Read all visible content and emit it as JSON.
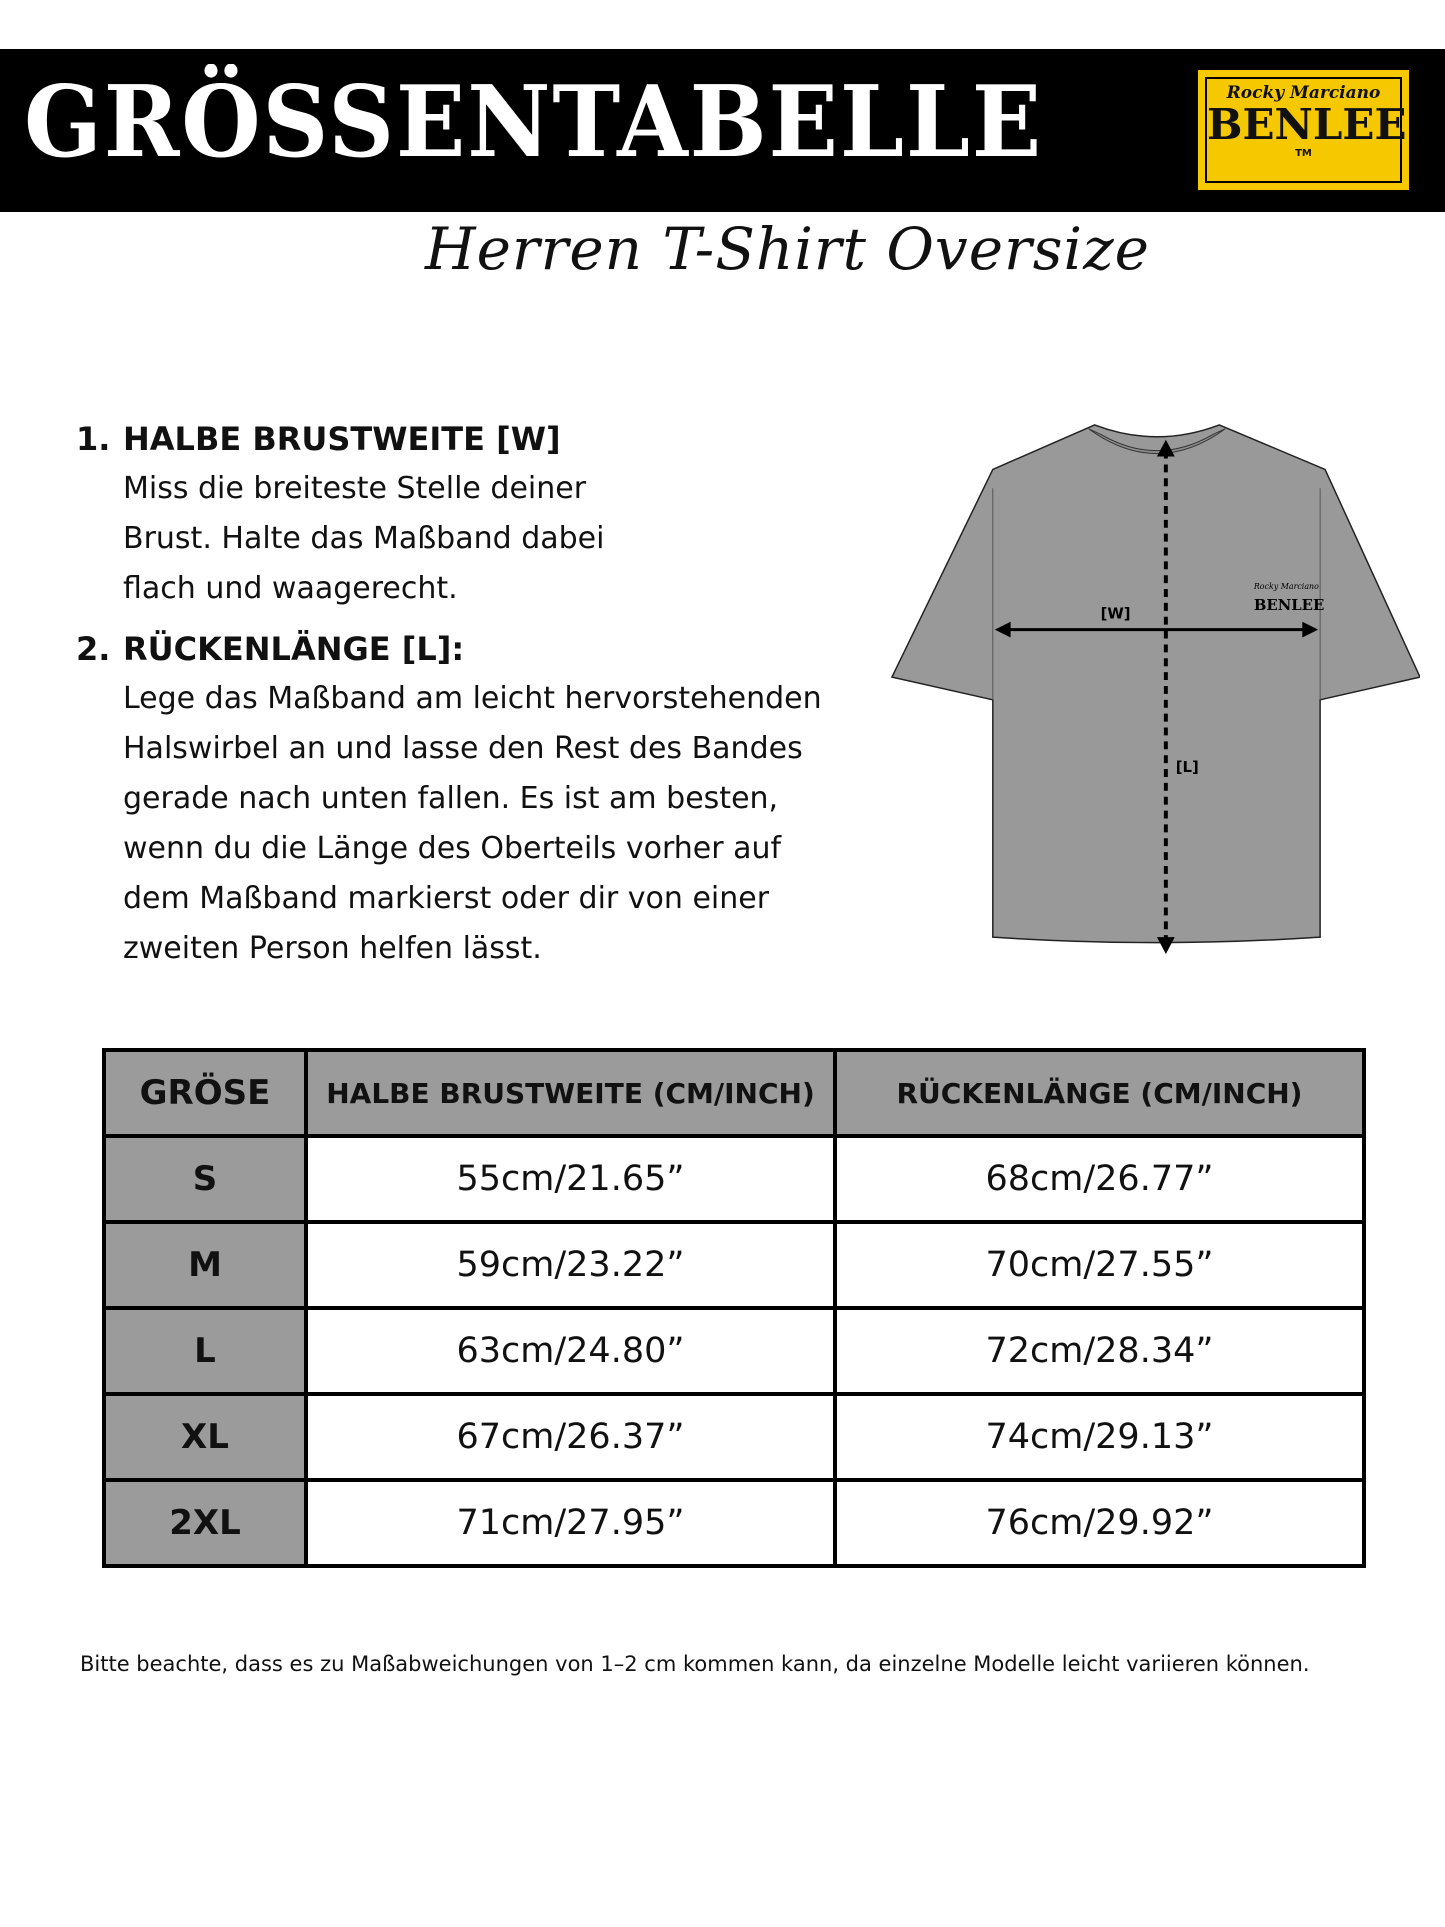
{
  "header": {
    "title": "GRÖSSENTABELLE",
    "subtitle": "Herren T-Shirt Oversize",
    "logo": {
      "script": "Rocky Marciano",
      "brand": "BENLEE",
      "tm": "TM",
      "color": "#f6c800"
    }
  },
  "instructions": [
    {
      "number": "1.",
      "heading": "HALBE BRUSTWEITE [W]",
      "lines": [
        "Miss die breiteste Stelle deiner",
        "Brust. Halte das Maßband dabei",
        "flach und waagerecht."
      ]
    },
    {
      "number": "2.",
      "heading": "RÜCKENLÄNGE [L]:",
      "lines": [
        "Lege das Maßband am leicht hervorstehenden",
        "Halswirbel an und lasse den Rest des Bandes",
        "gerade nach unten fallen. Es ist am besten,",
        "wenn du die Länge des Oberteils vorher auf",
        "dem Maßband markierst oder dir von einer",
        "zweiten Person helfen lässt."
      ]
    }
  ],
  "diagram": {
    "w_label": "[W]",
    "l_label": "[L]",
    "shirt_logo": "BENLEE",
    "shirt_logo_script": "Rocky Marciano",
    "shirt_color": "#999999"
  },
  "table": {
    "headers": [
      "GRÖSE",
      "HALBE BRUSTWEITE (CM/INCH)",
      "RÜCKENLÄNGE (CM/INCH)"
    ],
    "rows": [
      [
        "S",
        "55cm/21.65”",
        "68cm/26.77”"
      ],
      [
        "M",
        "59cm/23.22”",
        "70cm/27.55”"
      ],
      [
        "L",
        "63cm/24.80”",
        "72cm/28.34”"
      ],
      [
        "XL",
        "67cm/26.37”",
        "74cm/29.13”"
      ],
      [
        "2XL",
        "71cm/27.95”",
        "76cm/29.92”"
      ]
    ]
  },
  "footnote": "Bitte beachte, dass es zu Maßabweichungen von 1–2 cm kommen kann, da einzelne Modelle leicht variieren können."
}
